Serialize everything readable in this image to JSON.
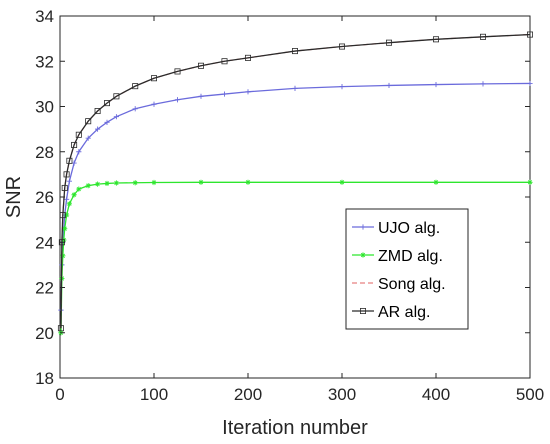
{
  "chart_data": {
    "type": "line",
    "xlabel": "Iteration number",
    "ylabel": "SNR",
    "xlim": [
      0,
      500
    ],
    "ylim": [
      18,
      34
    ],
    "xticks": [
      0,
      100,
      200,
      300,
      400,
      500
    ],
    "yticks": [
      18,
      20,
      22,
      24,
      26,
      28,
      30,
      32,
      34
    ],
    "grid": false,
    "legend_position": "center-right",
    "series": [
      {
        "name": "UJO alg.",
        "color": "#6b6bdc",
        "marker": "plus",
        "dash": "solid",
        "x": [
          1,
          2,
          3,
          5,
          7,
          10,
          15,
          20,
          30,
          40,
          50,
          60,
          80,
          100,
          125,
          150,
          175,
          200,
          250,
          300,
          350,
          400,
          450,
          500
        ],
        "y": [
          21.0,
          23.0,
          24.0,
          25.2,
          25.9,
          26.7,
          27.5,
          28.0,
          28.6,
          29.0,
          29.3,
          29.55,
          29.9,
          30.1,
          30.3,
          30.45,
          30.55,
          30.65,
          30.8,
          30.88,
          30.93,
          30.97,
          31.0,
          31.02
        ]
      },
      {
        "name": "ZMD alg.",
        "color": "#2ee62e",
        "marker": "asterisk",
        "dash": "solid",
        "x": [
          1,
          2,
          3,
          4,
          5,
          7,
          10,
          15,
          20,
          30,
          40,
          50,
          60,
          80,
          100,
          150,
          200,
          300,
          400,
          500
        ],
        "y": [
          20.0,
          22.4,
          23.4,
          24.1,
          24.6,
          25.2,
          25.7,
          26.1,
          26.35,
          26.5,
          26.57,
          26.6,
          26.62,
          26.63,
          26.64,
          26.65,
          26.65,
          26.65,
          26.65,
          26.65
        ]
      },
      {
        "name": "Song alg.",
        "color": "#e88080",
        "marker": "none",
        "dash": "dashed",
        "x": [
          1,
          2,
          3,
          5,
          7,
          10,
          15,
          20,
          30,
          40,
          50,
          60,
          80,
          100,
          125,
          150,
          175,
          200,
          250,
          300,
          350,
          400,
          450,
          500
        ],
        "y": [
          20.2,
          24.0,
          25.2,
          26.4,
          27.0,
          27.6,
          28.3,
          28.75,
          29.35,
          29.8,
          30.15,
          30.45,
          30.9,
          31.25,
          31.55,
          31.8,
          32.0,
          32.15,
          32.45,
          32.65,
          32.82,
          32.97,
          33.08,
          33.18
        ]
      },
      {
        "name": "AR alg.",
        "color": "#2b2b2b",
        "marker": "square",
        "dash": "solid",
        "x": [
          1,
          2,
          3,
          5,
          7,
          10,
          15,
          20,
          30,
          40,
          50,
          60,
          80,
          100,
          125,
          150,
          175,
          200,
          250,
          300,
          350,
          400,
          450,
          500
        ],
        "y": [
          20.2,
          24.0,
          25.2,
          26.4,
          27.0,
          27.6,
          28.3,
          28.75,
          29.35,
          29.8,
          30.15,
          30.45,
          30.9,
          31.25,
          31.55,
          31.8,
          32.0,
          32.15,
          32.45,
          32.65,
          32.82,
          32.97,
          33.08,
          33.18
        ]
      }
    ]
  }
}
